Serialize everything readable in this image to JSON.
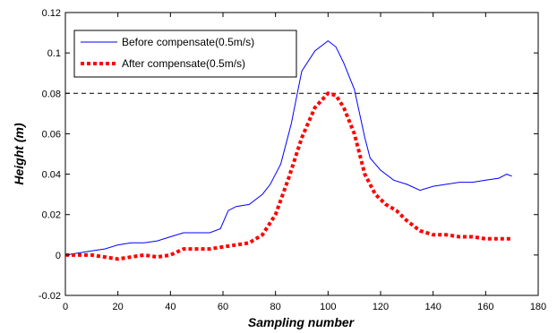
{
  "chart_data": {
    "type": "line",
    "title": "",
    "xlabel": "Sampling number",
    "ylabel": "Height (m)",
    "xlim": [
      0,
      180
    ],
    "ylim": [
      -0.02,
      0.12
    ],
    "x_ticks": [
      0,
      20,
      40,
      60,
      80,
      100,
      120,
      140,
      160,
      180
    ],
    "y_ticks": [
      -0.02,
      0,
      0.02,
      0.04,
      0.06,
      0.08,
      0.1,
      0.12
    ],
    "x_tick_labels": [
      "0",
      "20",
      "40",
      "60",
      "80",
      "100",
      "120",
      "140",
      "160",
      "180"
    ],
    "y_tick_labels": [
      "-0.02",
      "0",
      "0.02",
      "0.04",
      "0.06",
      "0.08",
      "0.1",
      "0.12"
    ],
    "grid": false,
    "legend_position": "top-left",
    "reference_line": {
      "y": 0.08,
      "style": "dashed",
      "color": "#000000"
    },
    "series": [
      {
        "name": "Before compensate(0.5m/s)",
        "color": "#0000ff",
        "style": "solid",
        "x": [
          0,
          5,
          10,
          15,
          20,
          25,
          30,
          35,
          40,
          45,
          50,
          55,
          59,
          62,
          65,
          70,
          75,
          78,
          82,
          86,
          88,
          90,
          95,
          100,
          103,
          106,
          110,
          114,
          116,
          118,
          120,
          125,
          130,
          135,
          140,
          145,
          150,
          155,
          160,
          165,
          168,
          170
        ],
        "values": [
          0.0,
          0.001,
          0.002,
          0.003,
          0.005,
          0.006,
          0.006,
          0.007,
          0.009,
          0.011,
          0.011,
          0.011,
          0.013,
          0.022,
          0.024,
          0.025,
          0.03,
          0.035,
          0.045,
          0.065,
          0.078,
          0.091,
          0.101,
          0.106,
          0.103,
          0.095,
          0.082,
          0.058,
          0.048,
          0.045,
          0.042,
          0.037,
          0.035,
          0.032,
          0.034,
          0.035,
          0.036,
          0.036,
          0.037,
          0.038,
          0.04,
          0.039
        ]
      },
      {
        "name": "After compensate(0.5m/s)",
        "color": "#ff0000",
        "style": "dotted",
        "x": [
          0,
          5,
          10,
          15,
          20,
          25,
          30,
          35,
          40,
          45,
          50,
          55,
          60,
          65,
          70,
          75,
          80,
          85,
          90,
          95,
          100,
          103,
          106,
          110,
          114,
          118,
          122,
          126,
          130,
          135,
          140,
          145,
          150,
          155,
          160,
          165,
          170
        ],
        "values": [
          0.0,
          0.0,
          0.0,
          -0.001,
          -0.002,
          -0.001,
          0.0,
          -0.001,
          0.0,
          0.003,
          0.003,
          0.003,
          0.004,
          0.005,
          0.006,
          0.01,
          0.02,
          0.038,
          0.058,
          0.073,
          0.08,
          0.079,
          0.073,
          0.06,
          0.04,
          0.03,
          0.025,
          0.022,
          0.017,
          0.012,
          0.01,
          0.01,
          0.009,
          0.009,
          0.008,
          0.008,
          0.008
        ]
      }
    ]
  }
}
